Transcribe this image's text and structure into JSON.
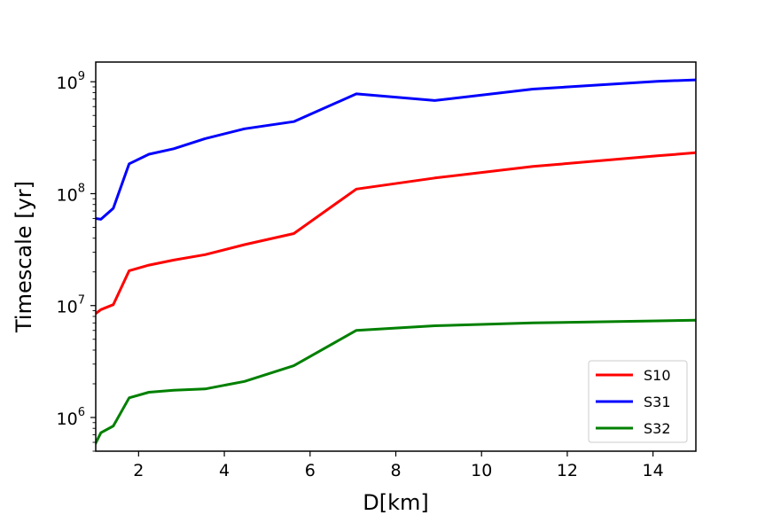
{
  "chart_data": {
    "type": "line",
    "title": "",
    "xlabel": "D[km]",
    "ylabel": "Timescale [yr]",
    "xlim": [
      1.0,
      15.0
    ],
    "ylim": [
      500000,
      1500000000
    ],
    "yscale": "log",
    "xticks": [
      2,
      4,
      6,
      8,
      10,
      12,
      14
    ],
    "xtick_labels": [
      "2",
      "4",
      "6",
      "8",
      "10",
      "12",
      "14"
    ],
    "yticks": [
      1000000,
      10000000,
      100000000,
      1000000000
    ],
    "ytick_labels": [
      {
        "base": "10",
        "exp": "6"
      },
      {
        "base": "10",
        "exp": "7"
      },
      {
        "base": "10",
        "exp": "8"
      },
      {
        "base": "10",
        "exp": "9"
      }
    ],
    "grid": false,
    "legend_position": "lower-right",
    "series": [
      {
        "name": "S10",
        "color": "#ff0000",
        "x": [
          1.0,
          1.12,
          1.41,
          1.78,
          2.24,
          2.82,
          3.55,
          4.47,
          5.62,
          7.08,
          8.91,
          11.2,
          14.1,
          15.0
        ],
        "y": [
          8500000,
          9200000,
          10200000,
          20500000,
          23000000,
          25500000,
          28500000,
          35000000,
          44000000,
          110000000,
          138000000,
          175000000,
          218000000,
          232000000
        ]
      },
      {
        "name": "S31",
        "color": "#0000ff",
        "x": [
          1.0,
          1.12,
          1.41,
          1.78,
          2.24,
          2.82,
          3.55,
          4.47,
          5.62,
          7.08,
          8.91,
          11.2,
          14.1,
          15.0
        ],
        "y": [
          60000000,
          59000000,
          74000000,
          185000000,
          225000000,
          252000000,
          310000000,
          380000000,
          440000000,
          780000000,
          680000000,
          860000000,
          1010000000,
          1040000000
        ]
      },
      {
        "name": "S32",
        "color": "#008000",
        "x": [
          1.0,
          1.12,
          1.41,
          1.78,
          2.24,
          2.82,
          3.55,
          4.47,
          5.62,
          7.08,
          8.91,
          11.2,
          14.1,
          15.0
        ],
        "y": [
          590000,
          730000,
          840000,
          1500000,
          1680000,
          1750000,
          1800000,
          2100000,
          2900000,
          6000000,
          6600000,
          7000000,
          7300000,
          7400000
        ]
      }
    ]
  }
}
